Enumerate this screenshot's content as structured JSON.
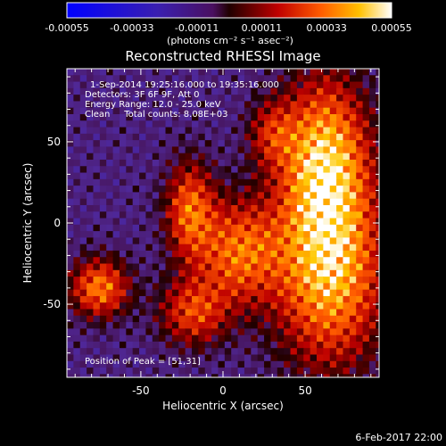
{
  "colorbar": {
    "ticks": [
      "-0.00055",
      "-0.00033",
      "-0.00011",
      "0.00011",
      "0.00033",
      "0.00055"
    ],
    "unit_label": "(photons cm⁻² s⁻¹ asec⁻²)",
    "range": [
      -0.00055,
      0.00055
    ]
  },
  "info": {
    "line1": "1-Sep-2014 19:25:16.000 to 19:35:16.000",
    "line2": "Detectors: 3F 6F 9F, Att 0",
    "line3": "Energy Range: 12.0 - 25.0 keV",
    "line4": "Clean     Total counts: 8.08E+03",
    "peak": "Position of Peak = [51,31]"
  },
  "footer": {
    "date": "6-Feb-2017 22:00"
  },
  "chart_data": {
    "type": "heatmap",
    "title": "Reconstructed RHESSI Image",
    "xlabel": "Heliocentric X (arcsec)",
    "ylabel": "Heliocentric Y (arcsec)",
    "xlim": [
      -95,
      95
    ],
    "ylim": [
      -95,
      95
    ],
    "xticks": [
      -50,
      0,
      50
    ],
    "yticks": [
      50,
      0,
      -50
    ],
    "colormap": "rhessi-heat",
    "value_range": [
      -0.00055,
      0.00055
    ],
    "peak_position": [
      51,
      31
    ],
    "sources": [
      {
        "x": 62,
        "y": 38,
        "sx": 18,
        "sy": 34,
        "amp": 0.00052
      },
      {
        "x": 65,
        "y": -30,
        "sx": 22,
        "sy": 38,
        "amp": 0.0005
      },
      {
        "x": 10,
        "y": -18,
        "sx": 18,
        "sy": 22,
        "amp": 0.00038
      },
      {
        "x": -20,
        "y": 8,
        "sx": 10,
        "sy": 20,
        "amp": 0.00036
      },
      {
        "x": -75,
        "y": -40,
        "sx": 12,
        "sy": 12,
        "amp": 0.0004
      },
      {
        "x": -18,
        "y": -55,
        "sx": 14,
        "sy": 14,
        "amp": 0.0003
      },
      {
        "x": 30,
        "y": 55,
        "sx": 10,
        "sy": 14,
        "amp": 0.00022
      }
    ]
  }
}
